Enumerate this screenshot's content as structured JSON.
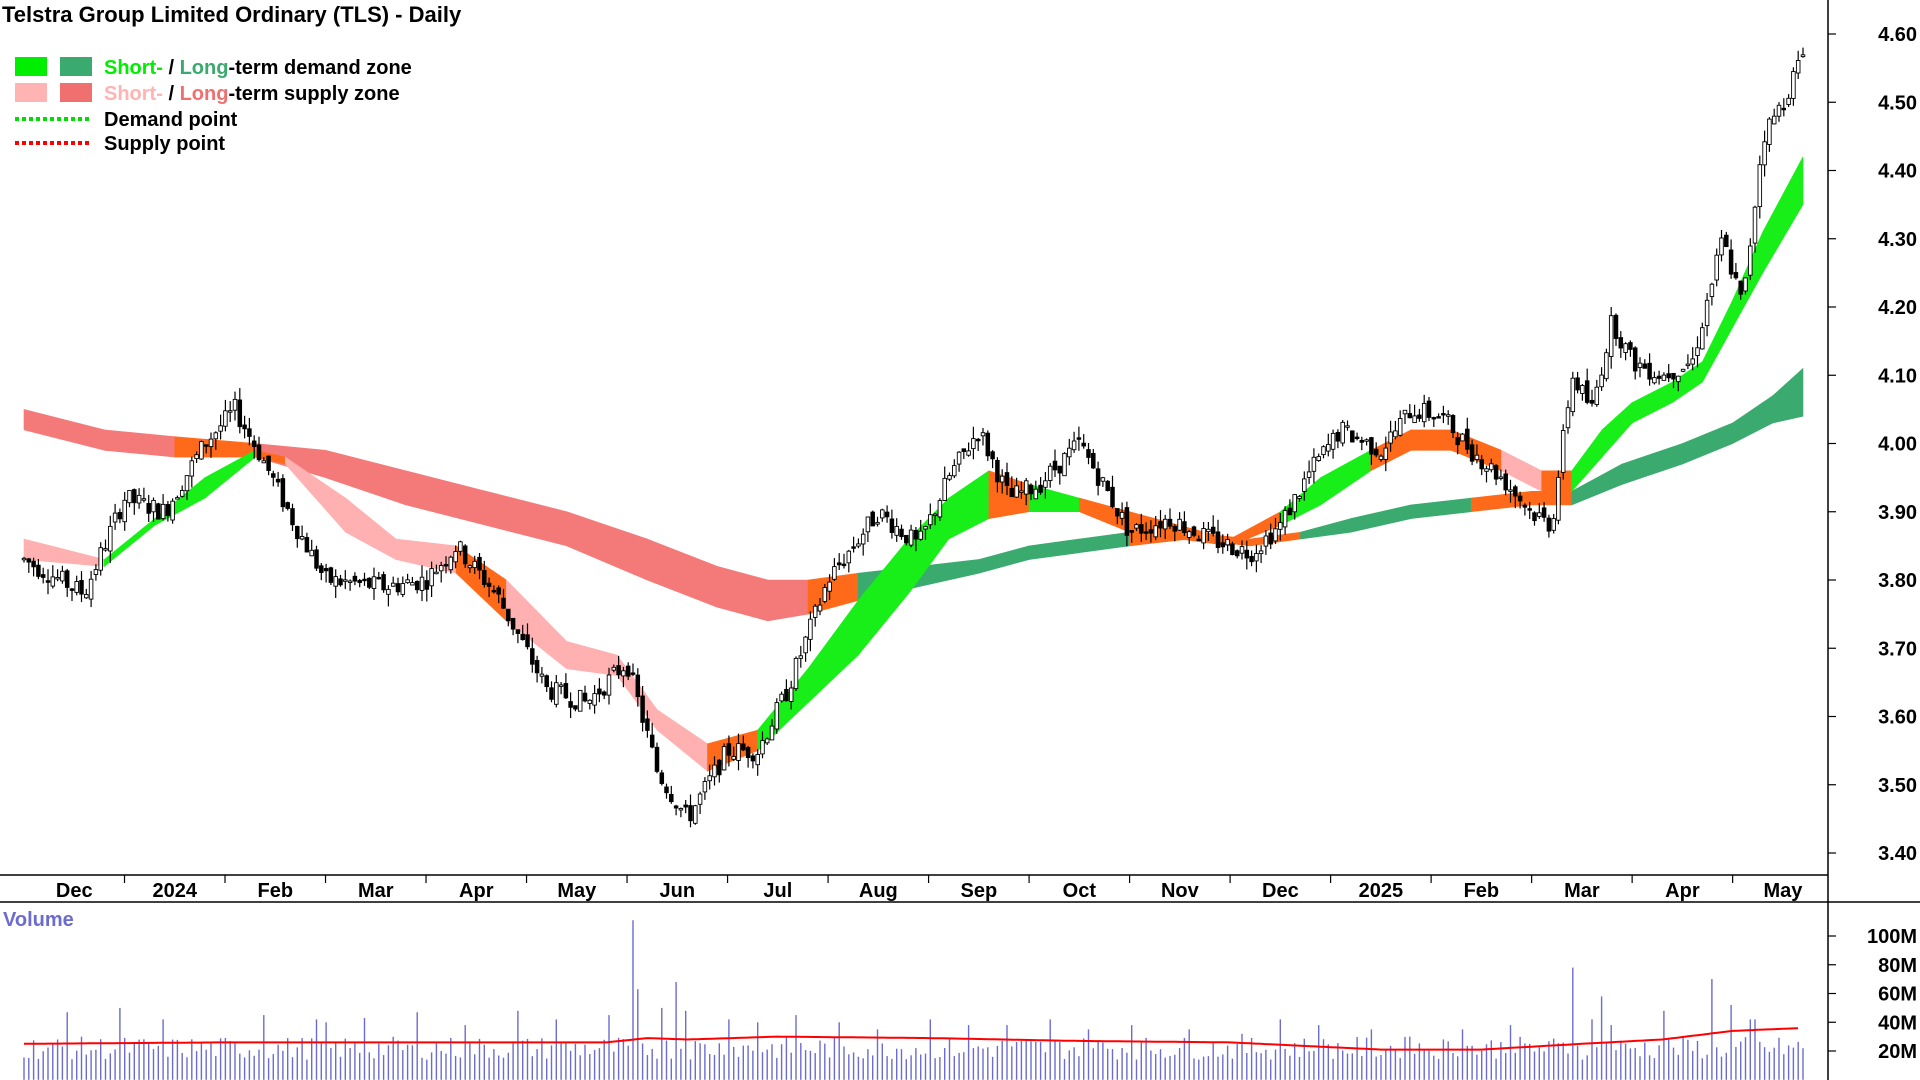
{
  "chart_data": {
    "type": "candlestick",
    "title": "Telstra Group Limited Ordinary (TLS) - Daily",
    "legend": {
      "placement": "top-left",
      "entries": [
        {
          "short_part": "Short-",
          "sep": " / ",
          "long_part": "Long",
          "rest": "-term demand zone",
          "short_color": "#00ee00",
          "long_color": "#3aaa6e"
        },
        {
          "short_part": "Short-",
          "sep": " / ",
          "long_part": "Long",
          "rest": "-term supply zone",
          "short_color": "#ffb3b3",
          "long_color": "#f06f6f"
        },
        {
          "label": "Demand point",
          "color": "#00dd00"
        },
        {
          "label": "Supply point",
          "color": "#ff0000"
        }
      ]
    },
    "price_axis": {
      "side": "right",
      "ylim": [
        3.35,
        4.63
      ],
      "ticks": [
        "4.60",
        "4.50",
        "4.40",
        "4.30",
        "4.20",
        "4.10",
        "4.00",
        "3.90",
        "3.80",
        "3.70",
        "3.60",
        "3.50",
        "3.40"
      ]
    },
    "months": [
      "Dec",
      "2024",
      "Feb",
      "Mar",
      "Apr",
      "May",
      "Jun",
      "Jul",
      "Aug",
      "Sep",
      "Oct",
      "Nov",
      "Dec",
      "2025",
      "Feb",
      "Mar",
      "Apr",
      "May"
    ],
    "month_positions": [
      0.5,
      1.5,
      2.5,
      3.5,
      4.5,
      5.5,
      6.5,
      7.5,
      8.5,
      9.5,
      10.5,
      11.5,
      12.5,
      13.5,
      14.5,
      15.5,
      16.5,
      17.5
    ],
    "price_anchors": [
      [
        0,
        3.83
      ],
      [
        0.6,
        3.78
      ],
      [
        1.0,
        3.92
      ],
      [
        1.4,
        3.9
      ],
      [
        1.8,
        4.0
      ],
      [
        2.1,
        4.05
      ],
      [
        2.4,
        3.97
      ],
      [
        2.7,
        3.88
      ],
      [
        3.0,
        3.8
      ],
      [
        3.6,
        3.79
      ],
      [
        4.0,
        3.8
      ],
      [
        4.3,
        3.85
      ],
      [
        4.7,
        3.78
      ],
      [
        5.2,
        3.64
      ],
      [
        5.6,
        3.62
      ],
      [
        6.0,
        3.68
      ],
      [
        6.3,
        3.52
      ],
      [
        6.6,
        3.45
      ],
      [
        7.0,
        3.55
      ],
      [
        7.3,
        3.55
      ],
      [
        7.6,
        3.64
      ],
      [
        8.0,
        3.8
      ],
      [
        8.5,
        3.9
      ],
      [
        8.9,
        3.85
      ],
      [
        9.2,
        3.95
      ],
      [
        9.5,
        4.02
      ],
      [
        9.8,
        3.92
      ],
      [
        10.1,
        3.94
      ],
      [
        10.5,
        4.0
      ],
      [
        10.7,
        3.95
      ],
      [
        11.0,
        3.87
      ],
      [
        11.4,
        3.89
      ],
      [
        11.8,
        3.86
      ],
      [
        12.2,
        3.84
      ],
      [
        12.5,
        3.88
      ],
      [
        12.8,
        3.96
      ],
      [
        13.1,
        4.02
      ],
      [
        13.5,
        3.99
      ],
      [
        13.8,
        4.05
      ],
      [
        14.1,
        4.04
      ],
      [
        14.4,
        3.99
      ],
      [
        14.7,
        3.95
      ],
      [
        15.0,
        3.9
      ],
      [
        15.2,
        3.88
      ],
      [
        15.4,
        4.1
      ],
      [
        15.6,
        4.05
      ],
      [
        15.8,
        4.18
      ],
      [
        16.0,
        4.12
      ],
      [
        16.3,
        4.1
      ],
      [
        16.6,
        4.12
      ],
      [
        16.9,
        4.3
      ],
      [
        17.1,
        4.2
      ],
      [
        17.3,
        4.45
      ],
      [
        17.5,
        4.5
      ],
      [
        17.7,
        4.57
      ]
    ],
    "short_zone": [
      [
        0,
        3.86,
        3.83
      ],
      [
        0.8,
        3.83,
        3.82
      ],
      [
        1.3,
        3.89,
        3.88
      ],
      [
        1.8,
        3.95,
        3.92
      ],
      [
        2.3,
        3.99,
        3.98
      ],
      [
        2.6,
        3.98,
        3.97
      ],
      [
        3.2,
        3.92,
        3.87
      ],
      [
        3.7,
        3.86,
        3.83
      ],
      [
        4.3,
        3.85,
        3.81
      ],
      [
        4.8,
        3.8,
        3.74
      ],
      [
        5.4,
        3.71,
        3.67
      ],
      [
        5.9,
        3.69,
        3.66
      ],
      [
        6.3,
        3.61,
        3.58
      ],
      [
        6.8,
        3.56,
        3.52
      ],
      [
        7.3,
        3.58,
        3.55
      ],
      [
        7.8,
        3.67,
        3.62
      ],
      [
        8.3,
        3.77,
        3.69
      ],
      [
        8.8,
        3.86,
        3.78
      ],
      [
        9.2,
        3.92,
        3.86
      ],
      [
        9.6,
        3.96,
        3.89
      ],
      [
        10.0,
        3.94,
        3.9
      ],
      [
        10.5,
        3.92,
        3.9
      ],
      [
        11.0,
        3.9,
        3.87
      ],
      [
        11.5,
        3.88,
        3.86
      ],
      [
        12.0,
        3.86,
        3.85
      ],
      [
        12.5,
        3.9,
        3.88
      ],
      [
        12.9,
        3.95,
        3.91
      ],
      [
        13.4,
        3.99,
        3.96
      ],
      [
        13.8,
        4.02,
        3.99
      ],
      [
        14.2,
        4.02,
        3.99
      ],
      [
        14.7,
        3.99,
        3.96
      ],
      [
        15.1,
        3.96,
        3.93
      ],
      [
        15.4,
        3.96,
        3.93
      ],
      [
        15.7,
        4.02,
        3.98
      ],
      [
        16.0,
        4.06,
        4.03
      ],
      [
        16.4,
        4.09,
        4.06
      ],
      [
        16.7,
        4.12,
        4.09
      ],
      [
        17.0,
        4.21,
        4.17
      ],
      [
        17.3,
        4.31,
        4.25
      ],
      [
        17.7,
        4.42,
        4.35
      ]
    ],
    "long_zone": [
      [
        0,
        4.05,
        4.02
      ],
      [
        0.8,
        4.02,
        3.99
      ],
      [
        1.5,
        4.01,
        3.98
      ],
      [
        2.3,
        4.0,
        3.98
      ],
      [
        3.0,
        3.99,
        3.95
      ],
      [
        3.8,
        3.96,
        3.91
      ],
      [
        4.6,
        3.93,
        3.88
      ],
      [
        5.4,
        3.9,
        3.85
      ],
      [
        6.2,
        3.86,
        3.8
      ],
      [
        6.9,
        3.82,
        3.76
      ],
      [
        7.4,
        3.8,
        3.74
      ],
      [
        7.8,
        3.8,
        3.75
      ],
      [
        8.3,
        3.81,
        3.77
      ],
      [
        8.9,
        3.82,
        3.79
      ],
      [
        9.5,
        3.83,
        3.81
      ],
      [
        10.0,
        3.85,
        3.83
      ],
      [
        10.5,
        3.86,
        3.84
      ],
      [
        11.0,
        3.87,
        3.85
      ],
      [
        11.6,
        3.87,
        3.86
      ],
      [
        12.2,
        3.86,
        3.85
      ],
      [
        12.7,
        3.87,
        3.86
      ],
      [
        13.2,
        3.89,
        3.87
      ],
      [
        13.8,
        3.91,
        3.89
      ],
      [
        14.4,
        3.92,
        3.9
      ],
      [
        15.0,
        3.93,
        3.91
      ],
      [
        15.4,
        3.93,
        3.91
      ],
      [
        15.9,
        3.97,
        3.94
      ],
      [
        16.5,
        4.0,
        3.97
      ],
      [
        17.0,
        4.03,
        4.0
      ],
      [
        17.4,
        4.07,
        4.03
      ],
      [
        17.7,
        4.11,
        4.04
      ]
    ],
    "volume_axis": {
      "side": "right",
      "title": "Volume",
      "ylim": [
        0,
        115
      ],
      "ticks": [
        "100M",
        "80M",
        "60M",
        "40M",
        "20M"
      ],
      "tick_values": [
        100,
        80,
        60,
        40,
        20
      ],
      "bar_color": "#6b6bd0",
      "average_color": "#ff0000"
    },
    "volume_spikes": [
      [
        0.45,
        47
      ],
      [
        0.95,
        50
      ],
      [
        1.4,
        42
      ],
      [
        2.4,
        45
      ],
      [
        2.9,
        42
      ],
      [
        3.0,
        40
      ],
      [
        3.4,
        43
      ],
      [
        3.9,
        47
      ],
      [
        4.4,
        38
      ],
      [
        4.9,
        48
      ],
      [
        5.3,
        42
      ],
      [
        5.8,
        45
      ],
      [
        6.05,
        111
      ],
      [
        6.1,
        63
      ],
      [
        6.35,
        50
      ],
      [
        6.5,
        68
      ],
      [
        6.6,
        48
      ],
      [
        7.0,
        42
      ],
      [
        7.3,
        40
      ],
      [
        7.7,
        45
      ],
      [
        8.1,
        40
      ],
      [
        8.5,
        35
      ],
      [
        9.0,
        42
      ],
      [
        9.4,
        38
      ],
      [
        9.8,
        38
      ],
      [
        10.2,
        42
      ],
      [
        10.6,
        35
      ],
      [
        11.0,
        38
      ],
      [
        11.6,
        35
      ],
      [
        12.1,
        32
      ],
      [
        12.5,
        42
      ],
      [
        12.9,
        38
      ],
      [
        13.4,
        35
      ],
      [
        13.8,
        30
      ],
      [
        14.3,
        35
      ],
      [
        14.8,
        38
      ],
      [
        15.4,
        78
      ],
      [
        15.6,
        42
      ],
      [
        15.7,
        58
      ],
      [
        15.8,
        38
      ],
      [
        16.3,
        48
      ],
      [
        16.8,
        70
      ],
      [
        17.0,
        52
      ],
      [
        17.2,
        42
      ]
    ],
    "volume_avg": [
      [
        0,
        25
      ],
      [
        2,
        26
      ],
      [
        4,
        26
      ],
      [
        5.8,
        26
      ],
      [
        6.2,
        29
      ],
      [
        6.6,
        28
      ],
      [
        7.5,
        30
      ],
      [
        9,
        29
      ],
      [
        10.5,
        27
      ],
      [
        12,
        26
      ],
      [
        13.5,
        21
      ],
      [
        14.5,
        21
      ],
      [
        15.5,
        25
      ],
      [
        16.3,
        28
      ],
      [
        17.0,
        34
      ],
      [
        17.7,
        36
      ]
    ]
  }
}
